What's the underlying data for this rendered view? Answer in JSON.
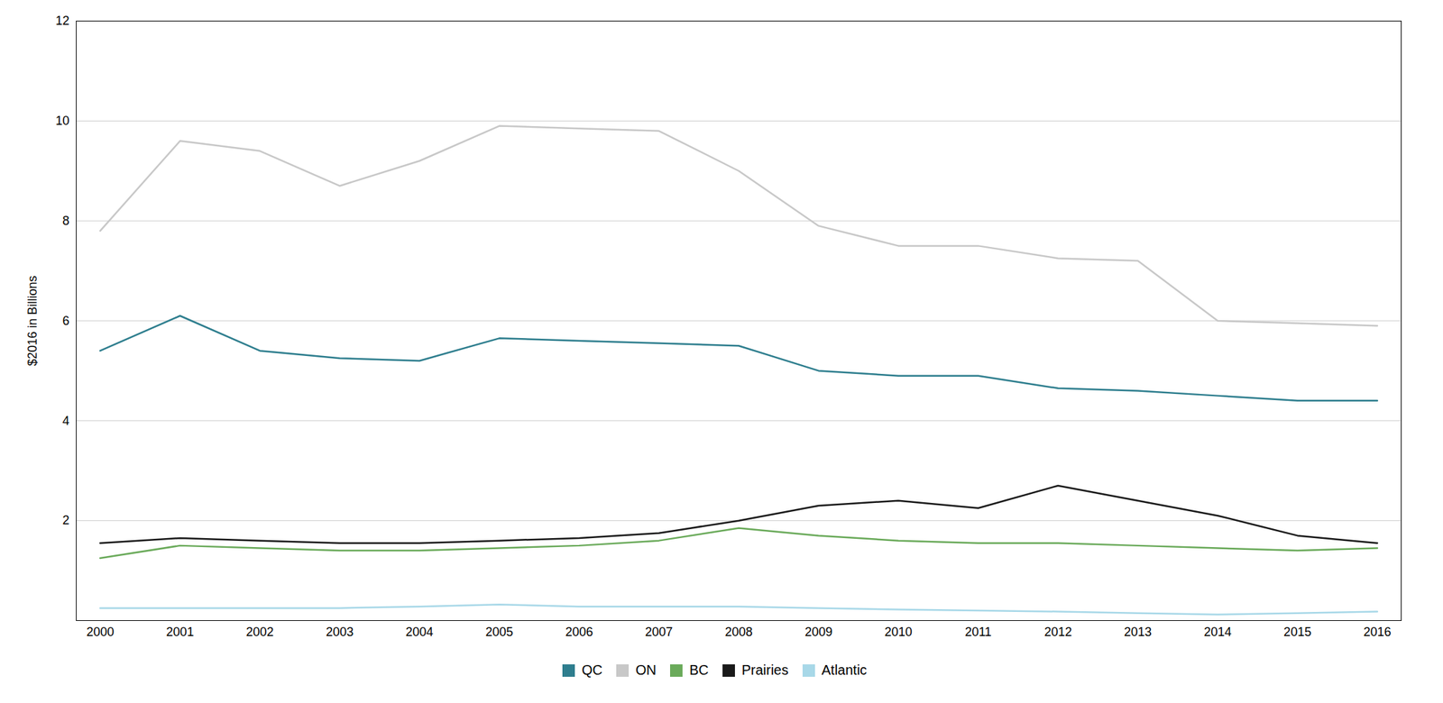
{
  "chart_data": {
    "type": "line",
    "x": [
      2000,
      2001,
      2002,
      2003,
      2004,
      2005,
      2006,
      2007,
      2008,
      2009,
      2010,
      2011,
      2012,
      2013,
      2014,
      2015,
      2016
    ],
    "series": [
      {
        "name": "QC",
        "color": "#2e7e8e",
        "values": [
          5.4,
          6.1,
          5.4,
          5.25,
          5.2,
          5.65,
          5.6,
          5.55,
          5.5,
          5.0,
          4.9,
          4.9,
          4.65,
          4.6,
          4.5,
          4.4,
          4.4
        ]
      },
      {
        "name": "ON",
        "color": "#c8c8c8",
        "values": [
          7.8,
          9.6,
          9.4,
          8.7,
          9.2,
          9.9,
          9.85,
          9.8,
          9.0,
          7.9,
          7.5,
          7.5,
          7.25,
          7.2,
          6.0,
          5.95,
          5.9
        ]
      },
      {
        "name": "BC",
        "color": "#6aaa5a",
        "values": [
          1.25,
          1.5,
          1.45,
          1.4,
          1.4,
          1.45,
          1.5,
          1.6,
          1.85,
          1.7,
          1.6,
          1.55,
          1.55,
          1.5,
          1.45,
          1.4,
          1.45
        ]
      },
      {
        "name": "Prairies",
        "color": "#1a1a1a",
        "values": [
          1.55,
          1.65,
          1.6,
          1.55,
          1.55,
          1.6,
          1.65,
          1.75,
          2.0,
          2.3,
          2.4,
          2.25,
          2.7,
          2.4,
          2.1,
          1.7,
          1.55
        ]
      },
      {
        "name": "Atlantic",
        "color": "#a8d8e8",
        "values": [
          0.25,
          0.25,
          0.25,
          0.25,
          0.28,
          0.32,
          0.28,
          0.28,
          0.28,
          0.25,
          0.22,
          0.2,
          0.18,
          0.15,
          0.12,
          0.15,
          0.18
        ]
      }
    ],
    "ylabel": "$2016 in Billions",
    "ylim": [
      0,
      12
    ],
    "yticks": [
      2,
      4,
      6,
      8,
      10,
      12
    ],
    "xlim": [
      1999.7,
      2016.3
    ],
    "xticks": [
      2000,
      2001,
      2002,
      2003,
      2004,
      2005,
      2006,
      2007,
      2008,
      2009,
      2010,
      2011,
      2012,
      2013,
      2014,
      2015,
      2016
    ],
    "grid": true,
    "legend": "bottom"
  }
}
